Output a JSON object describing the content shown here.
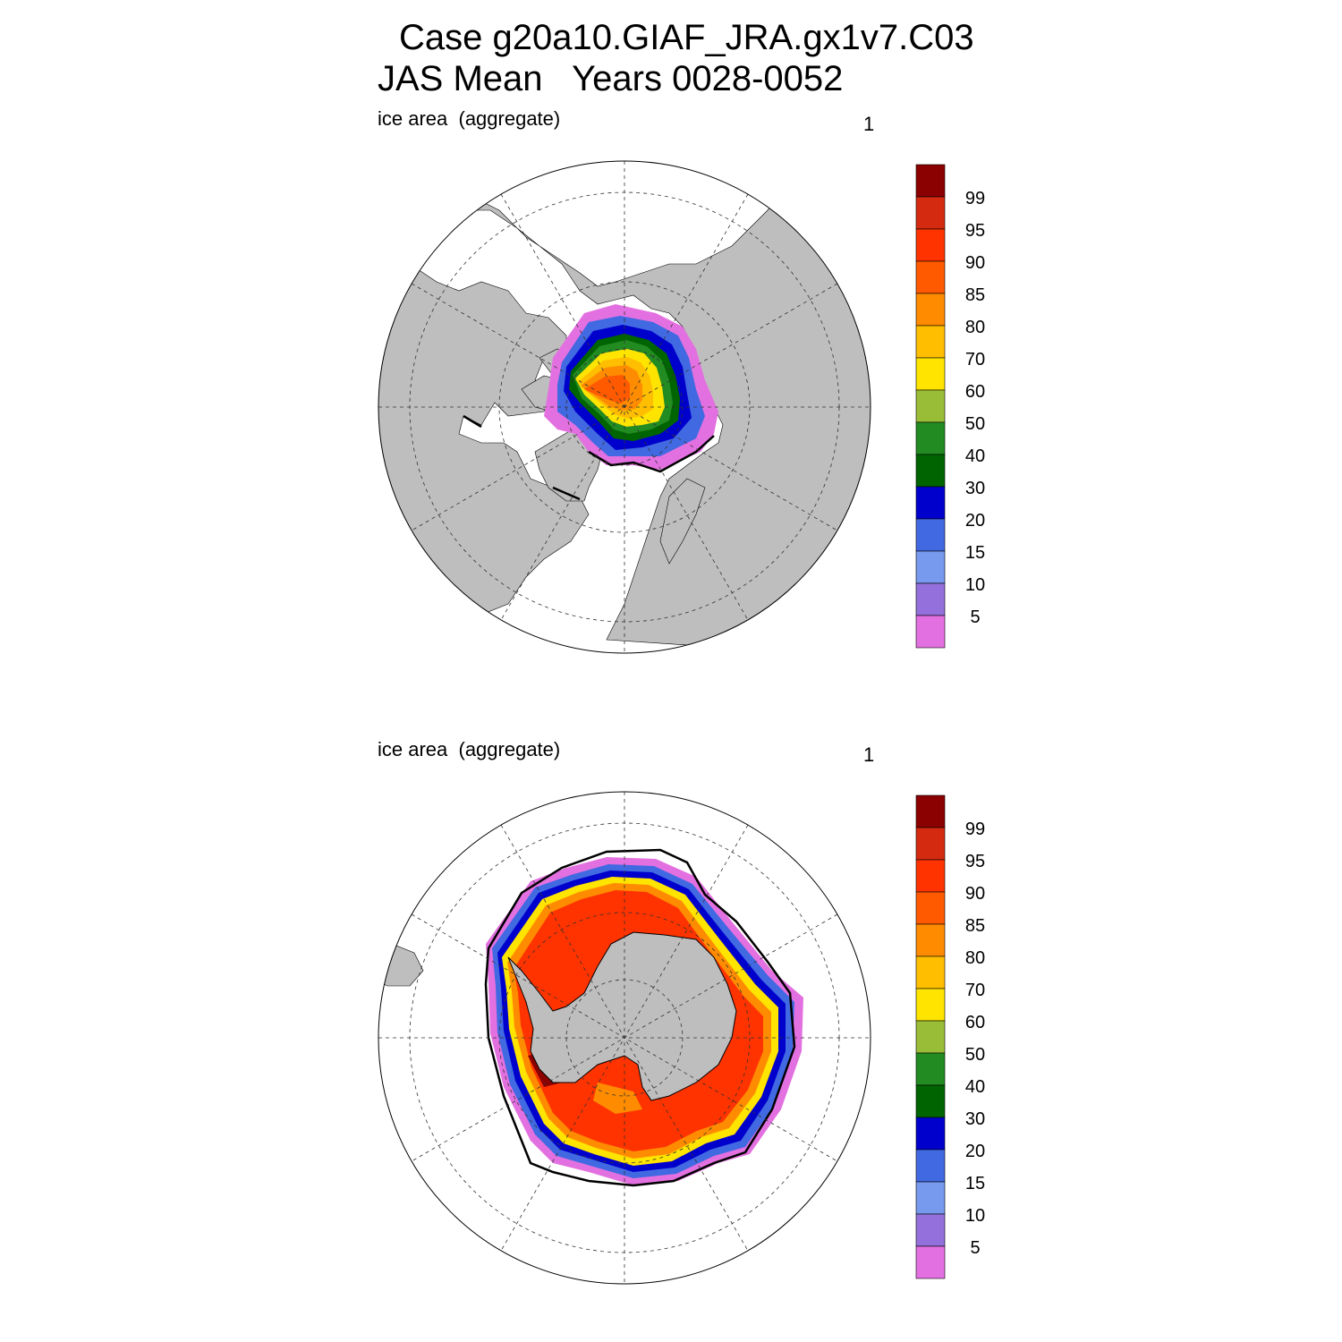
{
  "title": {
    "case": "Case g20a10.GIAF_JRA.gx1v7.C03",
    "period": "JAS Mean   Years 0028-0052"
  },
  "panels": [
    {
      "id": "north",
      "label": "ice area  (aggregate)",
      "number": "1",
      "hemisphere": "Northern"
    },
    {
      "id": "south",
      "label": "ice area  (aggregate)",
      "number": "1",
      "hemisphere": "Southern"
    }
  ],
  "colorbar": {
    "labels": [
      "99",
      "95",
      "90",
      "85",
      "80",
      "70",
      "60",
      "50",
      "40",
      "30",
      "20",
      "15",
      "10",
      "5"
    ],
    "colors": [
      "#8b0000",
      "#d42a10",
      "#ff3300",
      "#ff5a00",
      "#ff8c00",
      "#ffbe00",
      "#ffe400",
      "#9abd38",
      "#228b22",
      "#006400",
      "#0000cd",
      "#4169e1",
      "#7799ee",
      "#9370db",
      "#e370e0"
    ]
  },
  "palette": {
    "land": "#bebebe",
    "ocean": "#ffffff",
    "contour": "#000000"
  }
}
